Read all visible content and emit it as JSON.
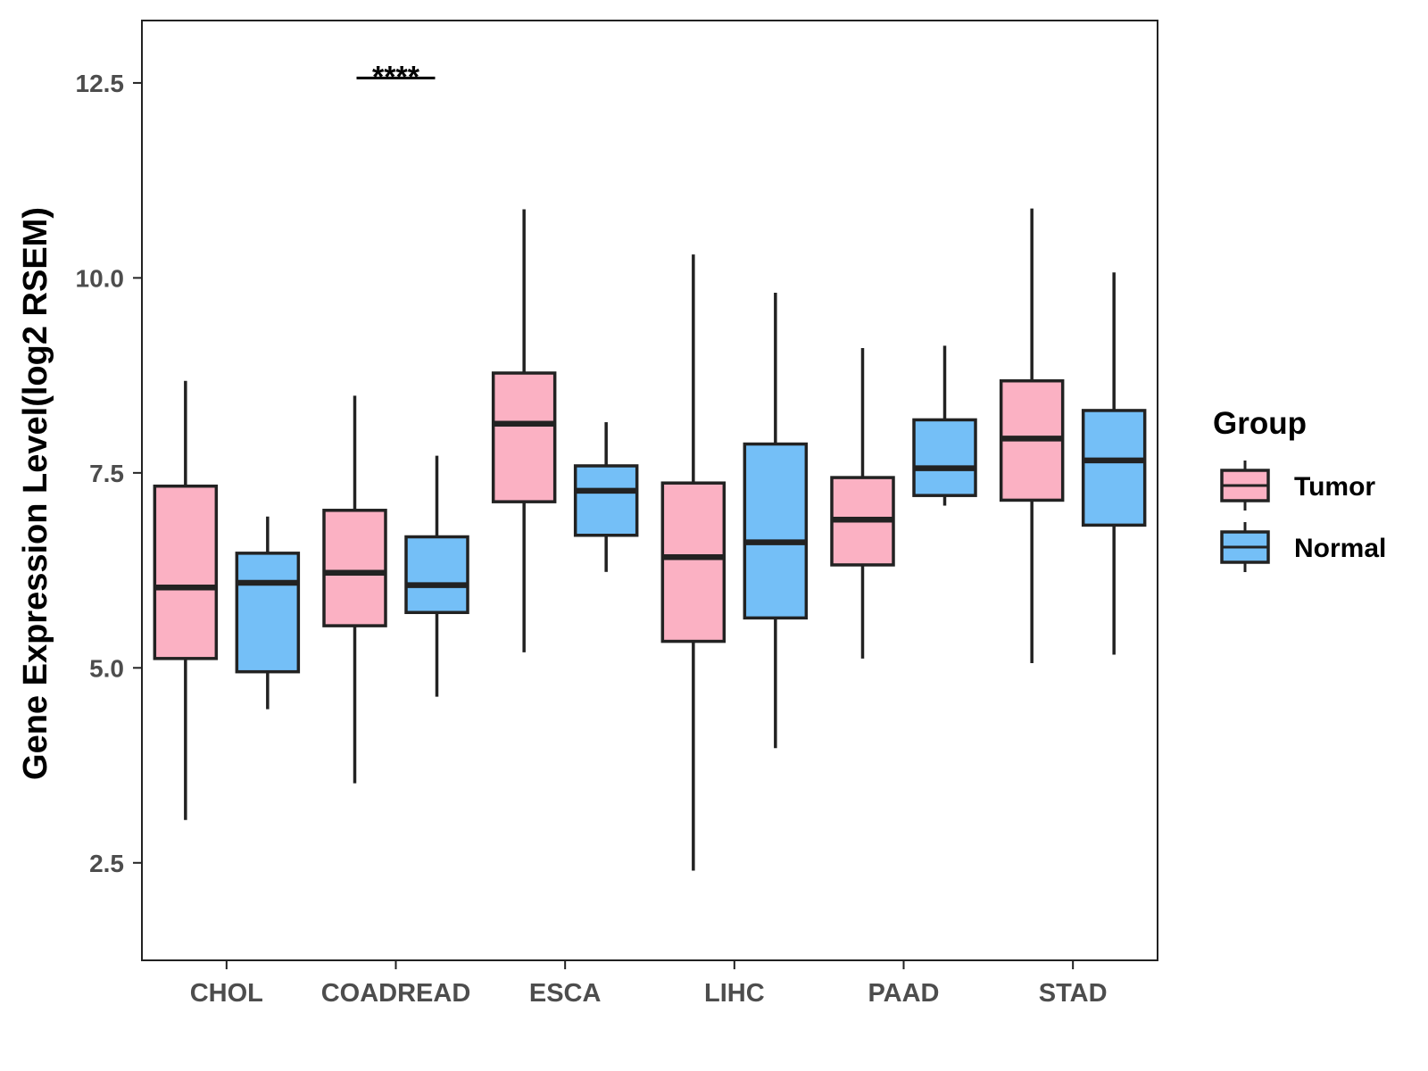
{
  "chart_data": {
    "type": "boxplot",
    "ylabel": "Gene Expression Level(log2 RSEM)",
    "xlabel": "",
    "ylim": [
      1.25,
      13.3
    ],
    "y_ticks": [
      2.5,
      5.0,
      7.5,
      10.0,
      12.5
    ],
    "y_tick_labels": [
      "2.5",
      "5.0",
      "7.5",
      "10.0",
      "12.5"
    ],
    "grid": false,
    "categories": [
      "CHOL",
      "COADREAD",
      "ESCA",
      "LIHC",
      "PAAD",
      "STAD"
    ],
    "series": [
      {
        "name": "Tumor",
        "color": "#FBB1C3",
        "boxes": [
          {
            "min": 3.05,
            "q1": 5.12,
            "median": 6.03,
            "q3": 7.33,
            "max": 8.68
          },
          {
            "min": 3.52,
            "q1": 5.54,
            "median": 6.22,
            "q3": 7.02,
            "max": 8.49
          },
          {
            "min": 5.2,
            "q1": 7.13,
            "median": 8.13,
            "q3": 8.78,
            "max": 10.88
          },
          {
            "min": 2.4,
            "q1": 5.34,
            "median": 6.42,
            "q3": 7.37,
            "max": 10.3
          },
          {
            "min": 5.12,
            "q1": 6.32,
            "median": 6.9,
            "q3": 7.44,
            "max": 9.1
          },
          {
            "min": 5.06,
            "q1": 7.15,
            "median": 7.94,
            "q3": 8.68,
            "max": 10.89
          }
        ]
      },
      {
        "name": "Normal",
        "color": "#74BFF7",
        "boxes": [
          {
            "min": 4.47,
            "q1": 4.95,
            "median": 6.09,
            "q3": 6.47,
            "max": 6.94
          },
          {
            "min": 4.63,
            "q1": 5.71,
            "median": 6.06,
            "q3": 6.68,
            "max": 7.72
          },
          {
            "min": 6.23,
            "q1": 6.7,
            "median": 7.27,
            "q3": 7.59,
            "max": 8.15
          },
          {
            "min": 3.97,
            "q1": 5.64,
            "median": 6.61,
            "q3": 7.87,
            "max": 9.81
          },
          {
            "min": 7.08,
            "q1": 7.21,
            "median": 7.56,
            "q3": 8.18,
            "max": 9.13
          },
          {
            "min": 5.17,
            "q1": 6.83,
            "median": 7.66,
            "q3": 8.3,
            "max": 10.07
          }
        ]
      }
    ],
    "annotations": [
      {
        "category": "COADREAD",
        "text": "****",
        "y": 12.7
      }
    ],
    "legend": {
      "title": "Group",
      "position": "right",
      "items": [
        "Tumor",
        "Normal"
      ]
    }
  }
}
